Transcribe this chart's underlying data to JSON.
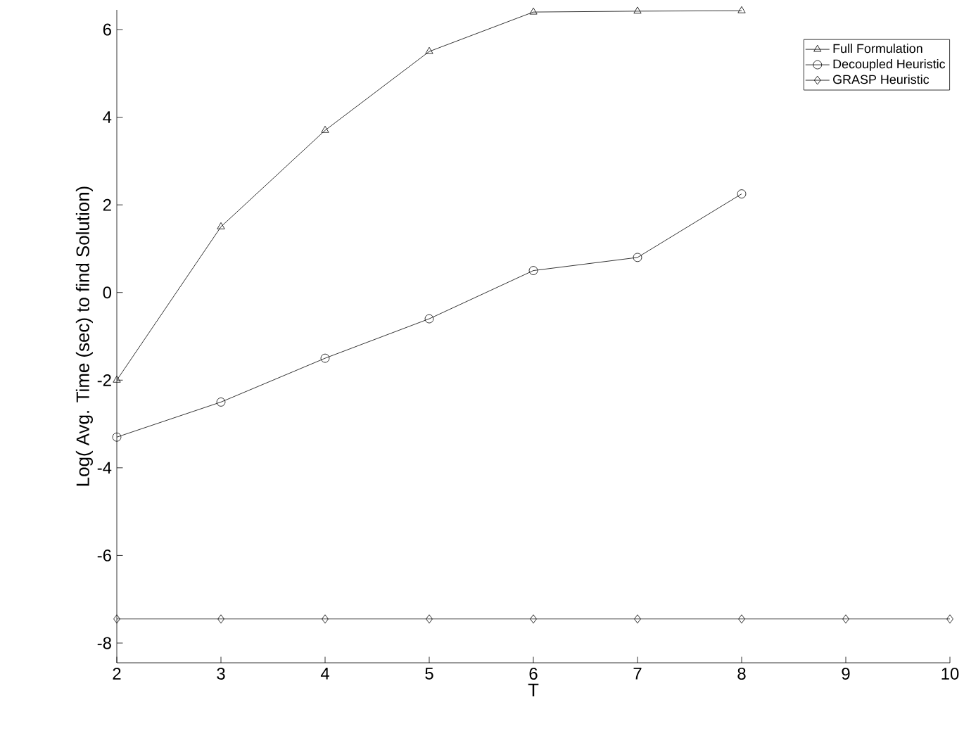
{
  "chart_data": {
    "type": "line",
    "xlabel": "T",
    "ylabel": "Log( Avg. Time (sec) to find Solution)",
    "xlim": [
      2,
      10
    ],
    "ylim": [
      -8.45,
      6.45
    ],
    "xticks": [
      2,
      3,
      4,
      5,
      6,
      7,
      8,
      9,
      10
    ],
    "yticks": [
      -8,
      -6,
      -4,
      -2,
      0,
      2,
      4,
      6
    ],
    "grid": false,
    "legend": "top right",
    "line_style": "solid",
    "series": [
      {
        "name": "Full Formulation",
        "color": "#000000",
        "marker": "triangle",
        "x": [
          2,
          3,
          4,
          5,
          6,
          7,
          8
        ],
        "values": [
          -2.0,
          1.5,
          3.7,
          5.5,
          6.4,
          6.42,
          6.43
        ]
      },
      {
        "name": "Decoupled Heuristic",
        "color": "#000000",
        "marker": "circle",
        "x": [
          2,
          3,
          4,
          5,
          6,
          7,
          8
        ],
        "values": [
          -3.3,
          -2.5,
          -1.5,
          -0.6,
          0.5,
          0.8,
          2.25
        ]
      },
      {
        "name": "GRASP Heuristic",
        "color": "#000000",
        "marker": "diamond",
        "x": [
          2,
          3,
          4,
          5,
          6,
          7,
          8,
          9,
          10
        ],
        "values": [
          -7.45,
          -7.45,
          -7.45,
          -7.45,
          -7.45,
          -7.45,
          -7.45,
          -7.45,
          -7.45
        ]
      }
    ]
  }
}
